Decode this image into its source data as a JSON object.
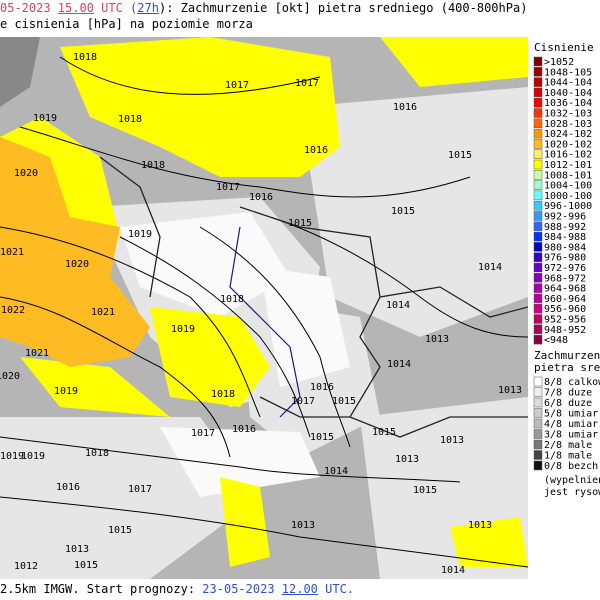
{
  "header": {
    "line1": [
      {
        "text": "05-2023 ",
        "style": "red"
      },
      {
        "text": "15.00",
        "style": "red u"
      },
      {
        "text": " UTC",
        "style": "red"
      },
      {
        "text": " (",
        "style": "blue"
      },
      {
        "text": "27h",
        "style": "blue u"
      },
      {
        "text": "): Zachmurzenie [okt] pietra sredniego (400-800hPa)",
        "style": ""
      }
    ],
    "line2": "e cisnienia [hPa] na poziomie morza"
  },
  "footer": [
    {
      "text": "2.5km IMGW. Start prognozy: ",
      "style": ""
    },
    {
      "text": "23-05-2023 ",
      "style": "blue"
    },
    {
      "text": "12.00",
      "style": "blue u"
    },
    {
      "text": " UTC.",
      "style": "blue"
    }
  ],
  "pressure_legend": {
    "title": "Cisnienie [hP",
    "entries": [
      {
        "label": ">1052",
        "color": "#7a0000"
      },
      {
        "label": "1048-105",
        "color": "#9a0000"
      },
      {
        "label": "1044-104",
        "color": "#bb0000"
      },
      {
        "label": "1040-104",
        "color": "#dd0000"
      },
      {
        "label": "1036-104",
        "color": "#ff0000"
      },
      {
        "label": "1032-103",
        "color": "#ff3300"
      },
      {
        "label": "1028-103",
        "color": "#ff6600"
      },
      {
        "label": "1024-102",
        "color": "#ff9900"
      },
      {
        "label": "1020-102",
        "color": "#ffbb22"
      },
      {
        "label": "1016-102",
        "color": "#ffee66"
      },
      {
        "label": "1012-101",
        "color": "#ffff00"
      },
      {
        "label": "1008-101",
        "color": "#ccff99"
      },
      {
        "label": "1004-100",
        "color": "#99ffcc"
      },
      {
        "label": "1000-100",
        "color": "#66ffff"
      },
      {
        "label": "996-1000",
        "color": "#33ccff"
      },
      {
        "label": "992-996",
        "color": "#3399ff"
      },
      {
        "label": "988-992",
        "color": "#3366ff"
      },
      {
        "label": "984-988",
        "color": "#0033ff"
      },
      {
        "label": "980-984",
        "color": "#0000cc"
      },
      {
        "label": "976-980",
        "color": "#3300cc"
      },
      {
        "label": "972-976",
        "color": "#6600cc"
      },
      {
        "label": "968-972",
        "color": "#8800bb"
      },
      {
        "label": "964-968",
        "color": "#aa00aa"
      },
      {
        "label": "960-964",
        "color": "#bb0099"
      },
      {
        "label": "956-960",
        "color": "#cc0088"
      },
      {
        "label": "952-956",
        "color": "#bb0066"
      },
      {
        "label": "948-952",
        "color": "#aa0055"
      },
      {
        "label": "<948",
        "color": "#880044"
      }
    ]
  },
  "cloud_legend": {
    "title": [
      "Zachmurzenie",
      "pietra srednie"
    ],
    "entries": [
      {
        "label": "8/8 calkow",
        "color": "#ffffff"
      },
      {
        "label": "7/8 duze",
        "color": "#eeeeee"
      },
      {
        "label": "6/8 duze",
        "color": "#dddddd"
      },
      {
        "label": "5/8 umiar",
        "color": "#cccccc"
      },
      {
        "label": "4/8 umiar",
        "color": "#bbbbbb"
      },
      {
        "label": "3/8 umiar",
        "color": "#999999"
      },
      {
        "label": "2/8 male",
        "color": "#777777"
      },
      {
        "label": "1/8 male",
        "color": "#444444"
      },
      {
        "label": "0/8 bezch",
        "color": "#111111"
      }
    ],
    "note": [
      "(wypelnien",
      "jest rysowe"
    ]
  },
  "map": {
    "isobar_labels": [
      "1018",
      "1017",
      "1017",
      "1016",
      "1019",
      "1018",
      "1016",
      "1015",
      "1018",
      "1020",
      "1017",
      "1016",
      "1015",
      "1019",
      "1015",
      "1021",
      "1020",
      "1014",
      "1018",
      "1021",
      "1022",
      "1019",
      "1014",
      "1013",
      "1021",
      "1014",
      "1020",
      "1019",
      "1018",
      "1017",
      "1016",
      "1015",
      "1013",
      "1017",
      "1016",
      "1015",
      "1015",
      "1013",
      "1019",
      "1019",
      "1018",
      "1014",
      "1013",
      "1015",
      "1017",
      "1016",
      "1015",
      "1013",
      "1013",
      "1014",
      "1012",
      "1013",
      "1015"
    ]
  }
}
